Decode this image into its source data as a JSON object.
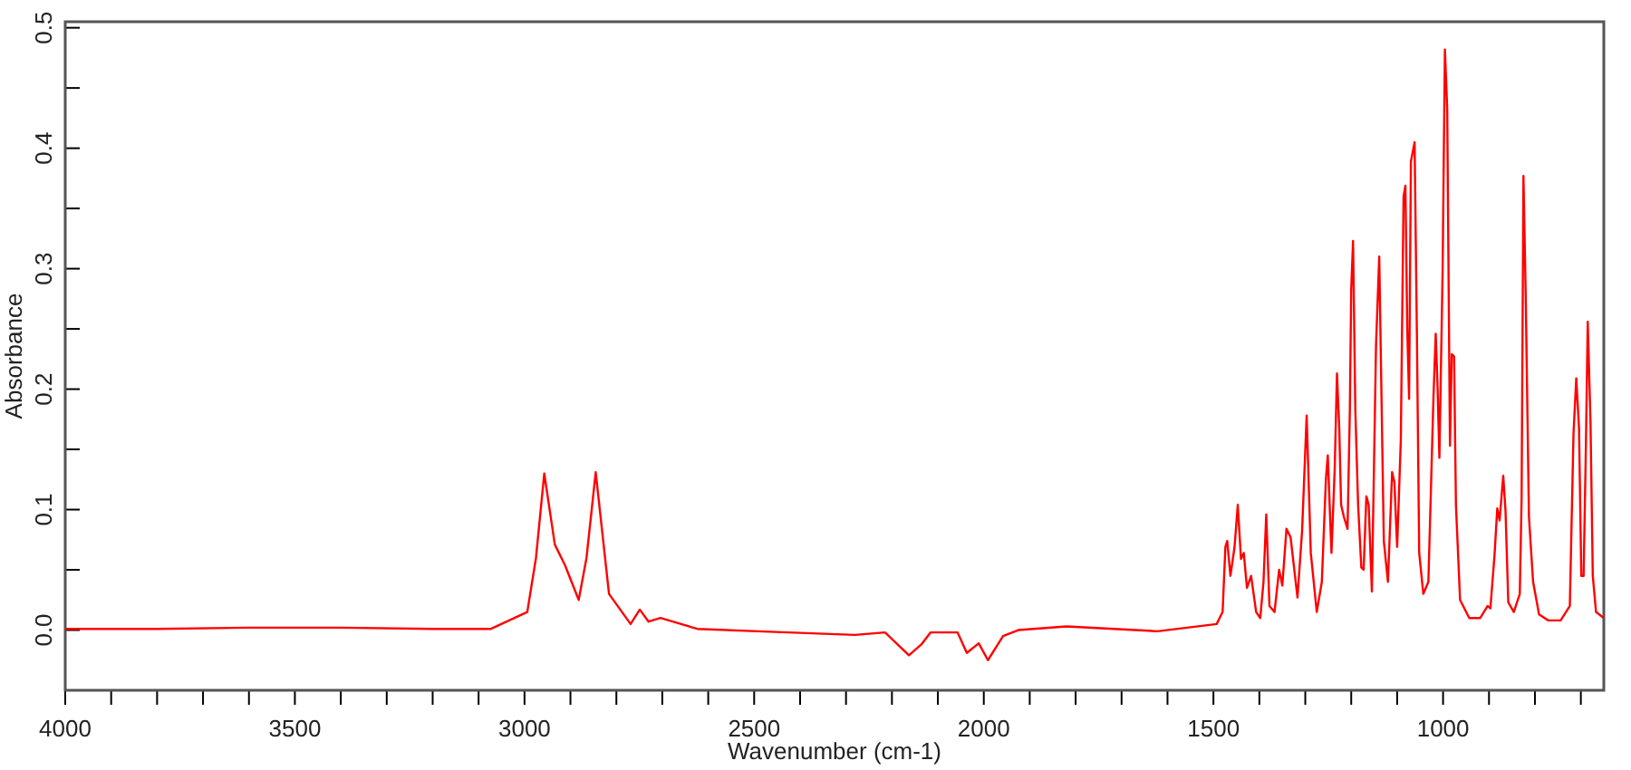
{
  "chart_data": {
    "type": "line",
    "xlabel": "Wavenumber (cm-1)",
    "ylabel": "Absorbance",
    "xlim": [
      4000,
      650
    ],
    "ylim": [
      -0.05,
      0.505
    ],
    "xticks": [
      4000,
      {
        "value": 3900,
        "label": null
      },
      {
        "value": 3800,
        "label": null
      },
      {
        "value": 3700,
        "label": null
      },
      {
        "value": 3600,
        "label": null
      },
      3500,
      {
        "value": 3400,
        "label": null
      },
      {
        "value": 3300,
        "label": null
      },
      {
        "value": 3200,
        "label": null
      },
      {
        "value": 3100,
        "label": null
      },
      3000,
      {
        "value": 2900,
        "label": null
      },
      {
        "value": 2800,
        "label": null
      },
      {
        "value": 2700,
        "label": null
      },
      {
        "value": 2600,
        "label": null
      },
      2500,
      {
        "value": 2400,
        "label": null
      },
      {
        "value": 2300,
        "label": null
      },
      {
        "value": 2200,
        "label": null
      },
      {
        "value": 2100,
        "label": null
      },
      2000,
      {
        "value": 1900,
        "label": null
      },
      {
        "value": 1800,
        "label": null
      },
      {
        "value": 1700,
        "label": null
      },
      {
        "value": 1600,
        "label": null
      },
      1500,
      {
        "value": 1400,
        "label": null
      },
      {
        "value": 1300,
        "label": null
      },
      {
        "value": 1200,
        "label": null
      },
      {
        "value": 1100,
        "label": null
      },
      1000,
      {
        "value": 900,
        "label": null
      },
      {
        "value": 800,
        "label": null
      },
      {
        "value": 700,
        "label": null
      }
    ],
    "yticks": [
      {
        "value": 0,
        "label": "0.0"
      },
      {
        "value": 0.05,
        "label": null
      },
      0.1,
      {
        "value": 0.15,
        "label": null
      },
      0.2,
      {
        "value": 0.25,
        "label": null
      },
      0.3,
      {
        "value": 0.35,
        "label": null
      },
      0.4,
      {
        "value": 0.45,
        "label": null
      },
      0.5
    ],
    "grid": false,
    "marker": "none",
    "line_style": "solid",
    "series": [
      {
        "color": "#ff0000",
        "x": [
          4000,
          3800,
          3600,
          3400,
          3200,
          3073,
          2994,
          2975,
          2957,
          2934,
          2912,
          2882,
          2865,
          2845,
          2816,
          2769,
          2749,
          2730,
          2704,
          2624,
          2492,
          2281,
          2215,
          2163,
          2136,
          2116,
          2057,
          2037,
          2011,
          1991,
          1958,
          1925,
          1820,
          1622,
          1493,
          1480,
          1474,
          1470,
          1463,
          1454,
          1447,
          1440,
          1434,
          1427,
          1418,
          1407,
          1398,
          1391,
          1385,
          1378,
          1367,
          1357,
          1350,
          1341,
          1332,
          1317,
          1307,
          1297,
          1288,
          1275,
          1264,
          1255,
          1251,
          1243,
          1236,
          1231,
          1226,
          1222,
          1216,
          1208,
          1203,
          1200,
          1196,
          1191,
          1185,
          1178,
          1173,
          1167,
          1162,
          1155,
          1146,
          1139,
          1134,
          1129,
          1120,
          1111,
          1106,
          1100,
          1092,
          1086,
          1082,
          1078,
          1074,
          1070,
          1062,
          1057,
          1052,
          1043,
          1032,
          1021,
          1016,
          1012,
          1008,
          1001,
          996,
          991,
          985,
          981,
          976,
          972,
          963,
          943,
          919,
          903,
          897,
          888,
          882,
          877,
          869,
          864,
          858,
          846,
          833,
          829,
          825,
          820,
          813,
          804,
          791,
          771,
          744,
          724,
          716,
          710,
          704,
          699,
          694,
          689,
          685,
          679,
          674,
          667,
          650
        ],
        "values": [
          0.001,
          0.001,
          0.002,
          0.002,
          0.001,
          0.001,
          0.015,
          0.06,
          0.13,
          0.071,
          0.054,
          0.025,
          0.06,
          0.131,
          0.03,
          0.005,
          0.017,
          0.007,
          0.01,
          0.001,
          -0.001,
          -0.004,
          -0.002,
          -0.021,
          -0.012,
          -0.002,
          -0.002,
          -0.019,
          -0.011,
          -0.025,
          -0.005,
          0,
          0.003,
          -0.001,
          0.005,
          0.015,
          0.069,
          0.074,
          0.045,
          0.069,
          0.104,
          0.059,
          0.064,
          0.035,
          0.045,
          0.015,
          0.01,
          0.04,
          0.096,
          0.02,
          0.015,
          0.05,
          0.037,
          0.084,
          0.077,
          0.027,
          0.082,
          0.178,
          0.064,
          0.015,
          0.04,
          0.126,
          0.145,
          0.064,
          0.133,
          0.213,
          0.167,
          0.104,
          0.094,
          0.084,
          0.182,
          0.283,
          0.323,
          0.182,
          0.104,
          0.052,
          0.05,
          0.111,
          0.104,
          0.032,
          0.236,
          0.31,
          0.192,
          0.074,
          0.04,
          0.131,
          0.123,
          0.069,
          0.158,
          0.36,
          0.369,
          0.251,
          0.192,
          0.389,
          0.405,
          0.246,
          0.064,
          0.03,
          0.04,
          0.192,
          0.246,
          0.202,
          0.143,
          0.298,
          0.482,
          0.433,
          0.153,
          0.229,
          0.227,
          0.104,
          0.025,
          0.01,
          0.01,
          0.02,
          0.018,
          0.062,
          0.101,
          0.091,
          0.128,
          0.099,
          0.023,
          0.015,
          0.03,
          0.109,
          0.377,
          0.276,
          0.094,
          0.04,
          0.013,
          0.008,
          0.008,
          0.02,
          0.163,
          0.209,
          0.168,
          0.045,
          0.045,
          0.153,
          0.256,
          0.173,
          0.045,
          0.015,
          0.01
        ]
      }
    ]
  }
}
